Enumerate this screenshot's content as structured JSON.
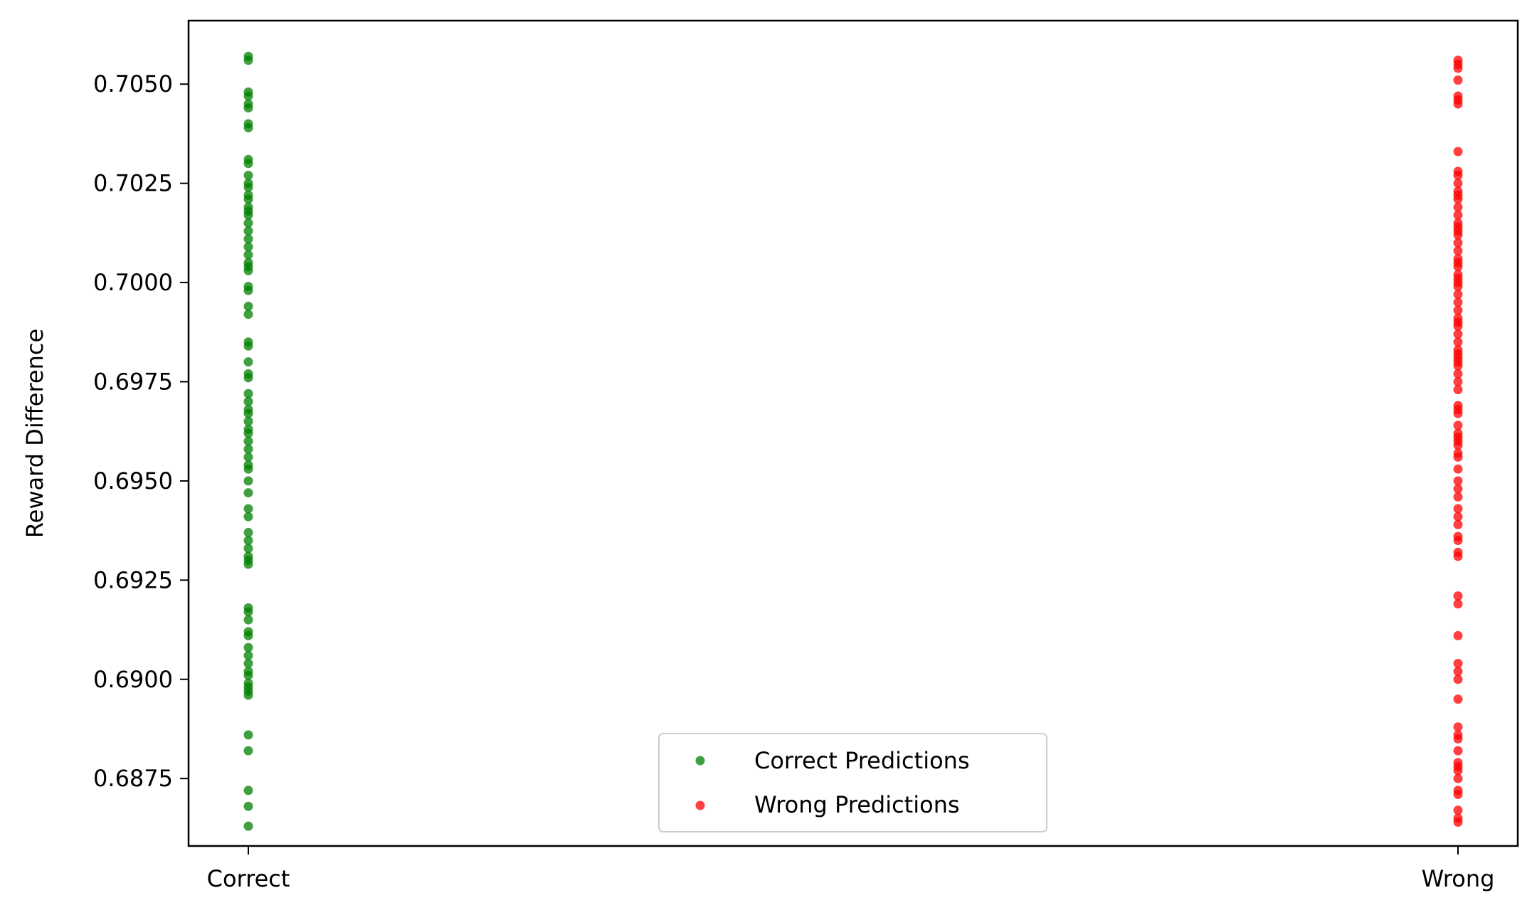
{
  "chart_data": {
    "type": "scatter",
    "title": "",
    "xlabel": "",
    "ylabel": "Reward Difference",
    "categories": [
      "Correct",
      "Wrong"
    ],
    "ylim": [
      0.6858,
      0.7066
    ],
    "yticks": [
      0.6875,
      0.69,
      0.6925,
      0.695,
      0.6975,
      0.7,
      0.7025,
      0.705
    ],
    "ytick_labels": [
      "0.6875",
      "0.6900",
      "0.6925",
      "0.6950",
      "0.6975",
      "0.7000",
      "0.7025",
      "0.7050"
    ],
    "grid": false,
    "legend_position": "lower center",
    "series": [
      {
        "name": "Correct Predictions",
        "color": "#008000",
        "x": "Correct",
        "values": [
          0.7057,
          0.7056,
          0.7048,
          0.7047,
          0.7045,
          0.7044,
          0.704,
          0.7039,
          0.7031,
          0.703,
          0.7027,
          0.7025,
          0.7024,
          0.7022,
          0.7021,
          0.7019,
          0.7018,
          0.7017,
          0.7015,
          0.7013,
          0.7011,
          0.7009,
          0.7007,
          0.7005,
          0.7004,
          0.7003,
          0.6999,
          0.6998,
          0.6994,
          0.6992,
          0.6985,
          0.6984,
          0.698,
          0.6977,
          0.6976,
          0.6972,
          0.697,
          0.6968,
          0.6967,
          0.6965,
          0.6963,
          0.6962,
          0.696,
          0.6958,
          0.6956,
          0.6954,
          0.6953,
          0.695,
          0.6947,
          0.6943,
          0.6941,
          0.6937,
          0.6935,
          0.6933,
          0.6931,
          0.693,
          0.6929,
          0.6918,
          0.6917,
          0.6915,
          0.6912,
          0.6911,
          0.6908,
          0.6906,
          0.6904,
          0.6902,
          0.6901,
          0.6899,
          0.6898,
          0.6897,
          0.6896,
          0.6886,
          0.6882,
          0.6872,
          0.6868,
          0.6863
        ]
      },
      {
        "name": "Wrong Predictions",
        "color": "#ff0000",
        "x": "Wrong",
        "values": [
          0.7056,
          0.7055,
          0.7054,
          0.7051,
          0.7047,
          0.7046,
          0.7045,
          0.7033,
          0.7028,
          0.7027,
          0.7025,
          0.7023,
          0.7022,
          0.7021,
          0.7019,
          0.7017,
          0.7015,
          0.7014,
          0.7013,
          0.7012,
          0.701,
          0.7008,
          0.7006,
          0.7005,
          0.7004,
          0.7002,
          0.7001,
          0.7,
          0.6999,
          0.6997,
          0.6995,
          0.6993,
          0.6991,
          0.699,
          0.6989,
          0.6987,
          0.6985,
          0.6983,
          0.6982,
          0.6981,
          0.698,
          0.6979,
          0.6977,
          0.6975,
          0.6973,
          0.6969,
          0.6968,
          0.6967,
          0.6964,
          0.6962,
          0.6961,
          0.696,
          0.6959,
          0.6957,
          0.6956,
          0.6953,
          0.695,
          0.6948,
          0.6946,
          0.6943,
          0.6941,
          0.6939,
          0.6936,
          0.6935,
          0.6932,
          0.6931,
          0.6921,
          0.6919,
          0.6911,
          0.6904,
          0.6902,
          0.69,
          0.6895,
          0.6888,
          0.6886,
          0.6885,
          0.6882,
          0.6879,
          0.6878,
          0.6877,
          0.6875,
          0.6872,
          0.6871,
          0.6867,
          0.6865,
          0.6864
        ]
      }
    ]
  }
}
